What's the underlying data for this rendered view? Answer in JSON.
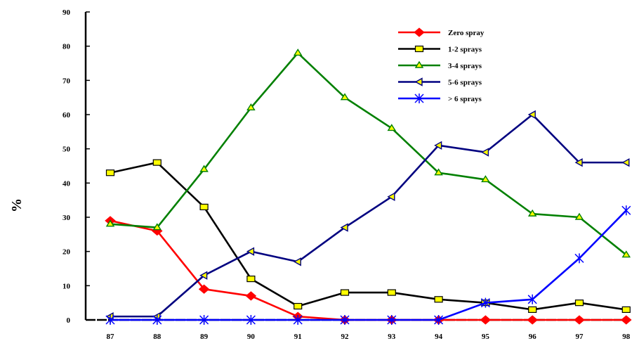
{
  "chart_data": {
    "type": "line",
    "title": "",
    "xlabel": "",
    "ylabel": "%",
    "x": [
      "87",
      "88",
      "89",
      "90",
      "91",
      "92",
      "93",
      "94",
      "95",
      "96",
      "97",
      "98"
    ],
    "ylim": [
      0,
      90
    ],
    "yticks": [
      0,
      10,
      20,
      30,
      40,
      50,
      60,
      70,
      80,
      90
    ],
    "grid": false,
    "legend_position": "top-right",
    "series": [
      {
        "name": "Zero spray",
        "color": "#ff0000",
        "marker": "diamond",
        "values": [
          29,
          26,
          9,
          7,
          1,
          0,
          0,
          0,
          0,
          0,
          0,
          0
        ]
      },
      {
        "name": "1-2 sprays",
        "color": "#000000",
        "marker": "square",
        "values": [
          43,
          46,
          33,
          12,
          4,
          8,
          8,
          6,
          5,
          3,
          5,
          3
        ]
      },
      {
        "name": "3-4 sprays",
        "color": "#008000",
        "marker": "triangle",
        "values": [
          28,
          27,
          44,
          62,
          78,
          65,
          56,
          43,
          41,
          31,
          30,
          19
        ]
      },
      {
        "name": "5-6 sprays",
        "color": "#000080",
        "marker": "tri-left",
        "values": [
          1,
          1,
          13,
          20,
          17,
          27,
          36,
          51,
          49,
          60,
          46,
          46
        ]
      },
      {
        "name": ">  6 sprays",
        "color": "#0000ff",
        "marker": "star",
        "values": [
          0,
          0,
          0,
          0,
          0,
          0,
          0,
          0,
          5,
          6,
          18,
          32
        ]
      }
    ]
  }
}
